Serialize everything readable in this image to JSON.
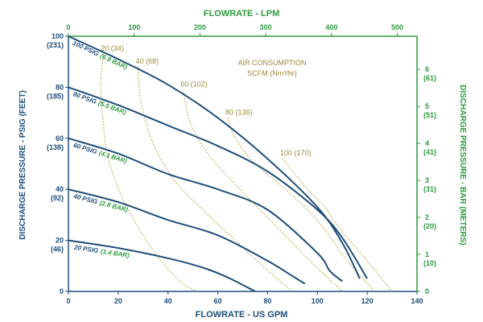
{
  "chart_data": {
    "type": "line",
    "title_top": "FLOWRATE - LPM",
    "xlabel": "FLOWRATE - US GPM",
    "ylabel_left": "DISCHARGE PRESSURE - PSIG (FEET)",
    "ylabel_right": "DISCHARGE PRESSURE - BAR (METERS)",
    "xlim": [
      0,
      140
    ],
    "ylim": [
      0,
      100
    ],
    "x_ticks": [
      "0",
      "20",
      "40",
      "60",
      "80",
      "100",
      "120",
      "140"
    ],
    "top_ticks": [
      "0",
      "100",
      "200",
      "300",
      "400",
      "500"
    ],
    "left_ticks": [
      {
        "value": 0,
        "main": "0",
        "sub": ""
      },
      {
        "value": 20,
        "main": "20",
        "sub": "(46)"
      },
      {
        "value": 40,
        "main": "40",
        "sub": "(92)"
      },
      {
        "value": 60,
        "main": "60",
        "sub": "(138)"
      },
      {
        "value": 80,
        "main": "80",
        "sub": "(185)"
      },
      {
        "value": 100,
        "main": "100",
        "sub": "(231)"
      }
    ],
    "right_ticks": [
      {
        "value": 0,
        "main": "0",
        "sub": ""
      },
      {
        "value": 1,
        "main": "1",
        "sub": "(10)"
      },
      {
        "value": 2,
        "main": "2",
        "sub": "(20)"
      },
      {
        "value": 3,
        "main": "3",
        "sub": "(31)"
      },
      {
        "value": 4,
        "main": "4",
        "sub": "(41)"
      },
      {
        "value": 5,
        "main": "5",
        "sub": "(51)"
      },
      {
        "value": 6,
        "main": "6",
        "sub": "(61)"
      }
    ],
    "air_title": [
      "AIR CONSUMPTION",
      "SCFM (Nm³/hr)"
    ],
    "series": [
      {
        "name": "100 PSIG",
        "bar": "(6.9 BAR)",
        "x": [
          0,
          20,
          40,
          60,
          80,
          100,
          110,
          117
        ],
        "y": [
          100,
          91,
          81,
          68,
          52,
          33,
          19,
          5
        ]
      },
      {
        "name": "80 PSIG",
        "bar": "(5.5 BAR)",
        "x": [
          0,
          20,
          40,
          60,
          80,
          100,
          110,
          120
        ],
        "y": [
          80,
          73,
          65,
          57,
          47,
          32,
          21,
          5
        ]
      },
      {
        "name": "60 PSIG",
        "bar": "(4.1 BAR)",
        "x": [
          0,
          20,
          40,
          60,
          80,
          100,
          105,
          110
        ],
        "y": [
          60,
          54,
          46,
          40,
          32,
          15,
          8,
          4
        ]
      },
      {
        "name": "40 PSIG",
        "bar": "(2.8 BAR)",
        "x": [
          0,
          20,
          40,
          60,
          80,
          90,
          95
        ],
        "y": [
          40,
          35,
          28,
          22,
          12,
          6,
          3
        ]
      },
      {
        "name": "20 PSIG",
        "bar": "(1.4 BAR)",
        "x": [
          0,
          20,
          40,
          55,
          65,
          75
        ],
        "y": [
          20,
          17,
          13,
          9,
          5,
          0
        ]
      }
    ],
    "air_lines": [
      {
        "label": "20 (34)",
        "x": [
          14,
          13,
          14,
          16,
          22,
          30,
          38,
          46,
          52
        ],
        "y": [
          93,
          80,
          66,
          52,
          36,
          22,
          11,
          3,
          0
        ]
      },
      {
        "label": "40 (68)",
        "x": [
          28,
          29,
          34,
          43,
          55,
          67,
          78,
          90
        ],
        "y": [
          88,
          75,
          58,
          43,
          31,
          20,
          10,
          0
        ]
      },
      {
        "label": "60 (102)",
        "x": [
          46,
          49,
          56,
          66,
          77,
          87,
          97,
          110
        ],
        "y": [
          79,
          66,
          54,
          43,
          32,
          22,
          12,
          0
        ]
      },
      {
        "label": "80 (136)",
        "x": [
          64,
          67,
          75,
          86,
          96,
          104,
          112,
          123
        ],
        "y": [
          68,
          60,
          50,
          41,
          32,
          23,
          12,
          0
        ]
      },
      {
        "label": "100 (170)",
        "x": [
          86,
          91,
          96,
          103,
          108,
          113,
          120,
          130
        ],
        "y": [
          52,
          46,
          40,
          33,
          26,
          20,
          12,
          0
        ]
      }
    ]
  }
}
